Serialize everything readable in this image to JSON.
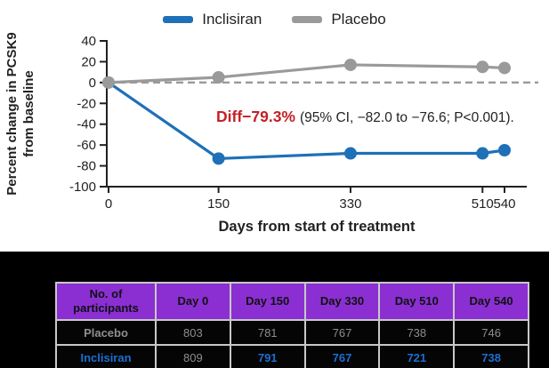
{
  "figure": {
    "legend": [
      {
        "label": "Inclisiran",
        "color": "#1e70b8"
      },
      {
        "label": "Placebo",
        "color": "#9a9a9a"
      }
    ],
    "ylabel_line1": "Percent change in PCSK9",
    "ylabel_line2": "from baseline",
    "xlabel": "Days from start of treatment",
    "annotation": {
      "highlight": "Diff−79.3%",
      "rest": "(95% CI, −82.0 to −76.6; P<0.001)."
    }
  },
  "chart_data": {
    "type": "line",
    "x": [
      0,
      150,
      330,
      510,
      540
    ],
    "xticks": [
      0,
      150,
      330,
      510,
      540
    ],
    "yticks": [
      40,
      20,
      0,
      -20,
      -40,
      -60,
      -80,
      -100
    ],
    "ylim": [
      -100,
      40
    ],
    "xlabel": "Days from start of treatment",
    "ylabel": "Percent change in PCSK9 from baseline",
    "zero_baseline_dashed": true,
    "legend_position": "top-center",
    "series": [
      {
        "name": "Inclisiran",
        "color": "#1e70b8",
        "values": [
          0,
          -73,
          -68,
          -68,
          -65
        ]
      },
      {
        "name": "Placebo",
        "color": "#9a9a9a",
        "values": [
          0,
          5,
          17,
          15,
          14
        ]
      }
    ],
    "annotation": "Diff−79.3% (95% CI, −82.0 to −76.6; P<0.001)."
  },
  "table": {
    "header": [
      "No. of participants",
      "Day 0",
      "Day 150",
      "Day 330",
      "Day 510",
      "Day 540"
    ],
    "rows": [
      {
        "label": "Placebo",
        "values": [
          "803",
          "781",
          "767",
          "738",
          "746"
        ],
        "color": "#8e8e8e"
      },
      {
        "label": "Inclisiran",
        "values": [
          "809",
          "791",
          "767",
          "721",
          "738"
        ],
        "color": "#1c6fd2"
      }
    ]
  },
  "colors": {
    "inclisiran_blue": "#1e70b8",
    "placebo_gray": "#9a9a9a",
    "diff_red": "#c42127",
    "table_header_purple": "#8b2fd3",
    "table_border": "#c8c8c8",
    "band_background": "#000000"
  }
}
